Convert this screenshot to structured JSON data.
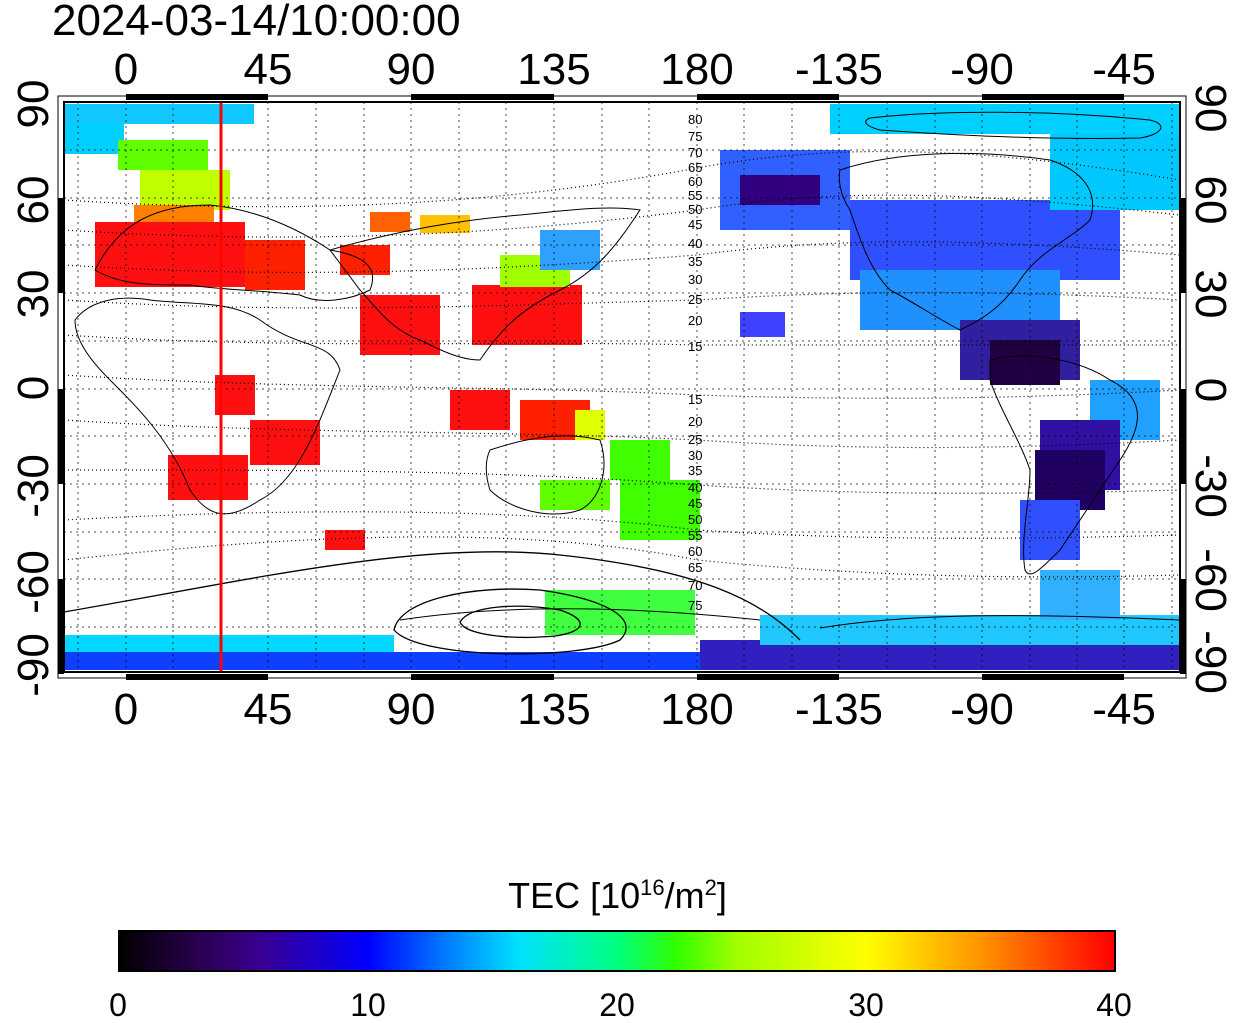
{
  "timestamp": "2024-03-14/10:00:00",
  "x_ticks_top": [
    "0",
    "45",
    "90",
    "135",
    "180",
    "-135",
    "-90",
    "-45"
  ],
  "x_ticks_bottom": [
    "0",
    "45",
    "90",
    "135",
    "180",
    "-135",
    "-90",
    "-45"
  ],
  "y_ticks_left": [
    "90",
    "60",
    "30",
    "0",
    "-30",
    "-60",
    "-90"
  ],
  "y_ticks_right": [
    "90",
    "60",
    "30",
    "0",
    "-30",
    "-60",
    "-90"
  ],
  "map": {
    "lon_range": [
      -20,
      335
    ],
    "lat_range": [
      -90,
      90
    ],
    "grid": "dashed every 15 degrees",
    "marker_longitude": 30,
    "marker_color": "#ff0000",
    "contour_labels_north": [
      "80",
      "75",
      "70",
      "65",
      "60",
      "55",
      "50",
      "45",
      "40",
      "35",
      "30",
      "25",
      "20",
      "15"
    ],
    "contour_labels_south": [
      "15",
      "20",
      "25",
      "30",
      "35",
      "40",
      "45",
      "50",
      "55",
      "60",
      "65",
      "70",
      "75"
    ]
  },
  "colorbar": {
    "title_main": "TEC  [10",
    "title_exp1": "16",
    "title_unit": "/m",
    "title_exp2": "2",
    "title_end": "]",
    "ticks": [
      "0",
      "10",
      "20",
      "30",
      "40"
    ],
    "range": [
      0,
      40
    ],
    "colors": [
      "#000000",
      "#3a0090",
      "#0000ff",
      "#00e0ff",
      "#30ff00",
      "#ffff00",
      "#ff0000"
    ]
  }
}
